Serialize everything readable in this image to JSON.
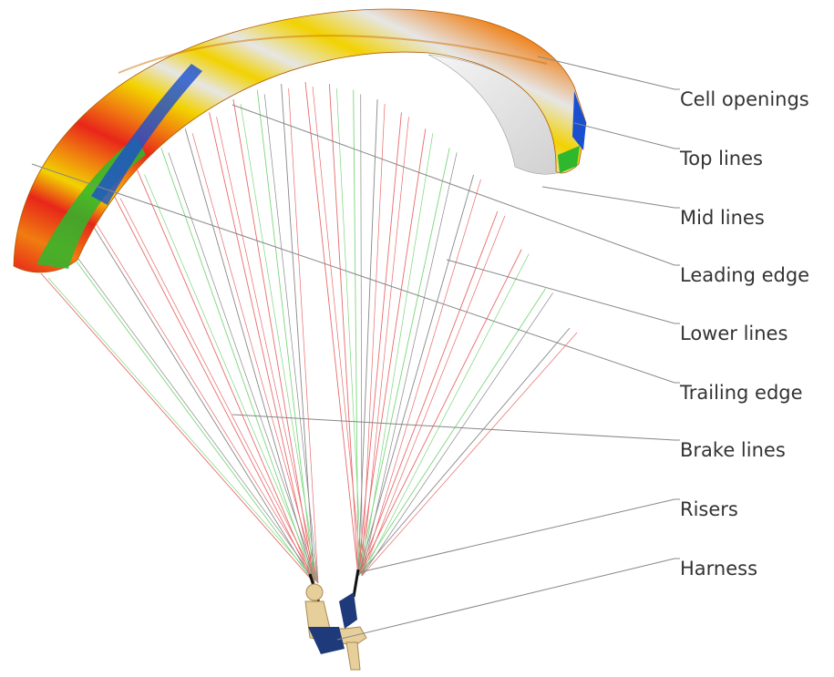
{
  "callouts": [
    {
      "label": "Cell openings"
    },
    {
      "label": "Top lines"
    },
    {
      "label": "Mid lines"
    },
    {
      "label": "Leading edge"
    },
    {
      "label": "Lower lines"
    },
    {
      "label": "Trailing edge"
    },
    {
      "label": "Brake lines"
    },
    {
      "label": "Risers"
    },
    {
      "label": "Harness"
    }
  ]
}
